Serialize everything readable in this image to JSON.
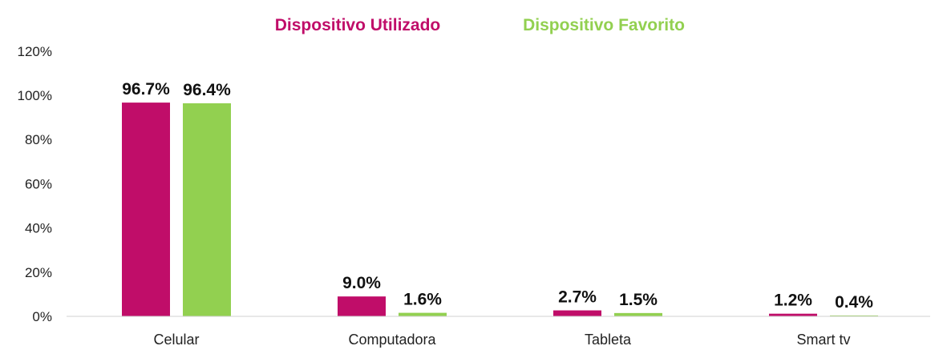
{
  "chart_data": {
    "type": "bar",
    "categories": [
      "Celular",
      "Computadora",
      "Tableta",
      "Smart tv"
    ],
    "series": [
      {
        "name": "Dispositivo Utilizado",
        "values": [
          96.7,
          9.0,
          2.7,
          1.2
        ],
        "labels": [
          "96.7%",
          "9.0%",
          "2.7%",
          "1.2%"
        ],
        "color": "#C00D69"
      },
      {
        "name": "Dispositivo Favorito",
        "values": [
          96.4,
          1.6,
          1.5,
          0.4
        ],
        "labels": [
          "96.4%",
          "1.6%",
          "1.5%",
          "0.4%"
        ],
        "color": "#92D050"
      }
    ],
    "ylim": [
      0,
      120
    ],
    "yticks": [
      0,
      20,
      40,
      60,
      80,
      100,
      120
    ],
    "ytick_labels": [
      "0%",
      "20%",
      "40%",
      "60%",
      "80%",
      "100%",
      "120%"
    ],
    "legend_position": "top-center",
    "grid": false
  }
}
